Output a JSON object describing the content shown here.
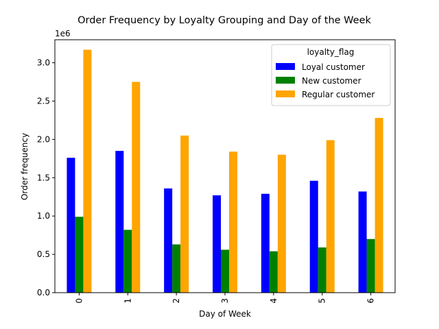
{
  "chart_data": {
    "type": "bar",
    "title": "Order Frequency by Loyalty Grouping and Day of the Week",
    "xlabel": "Day of Week",
    "ylabel": "Order frequency",
    "y_offset_label": "1e6",
    "y_scale": 1000000,
    "categories": [
      "0",
      "1",
      "2",
      "3",
      "4",
      "5",
      "6"
    ],
    "ylim": [
      0,
      3300000
    ],
    "yticks": [
      0,
      500000,
      1000000,
      1500000,
      2000000,
      2500000,
      3000000
    ],
    "ytick_labels": [
      "0.0",
      "0.5",
      "1.0",
      "1.5",
      "2.0",
      "2.5",
      "3.0"
    ],
    "grid": false,
    "legend": {
      "title": "loyalty_flag",
      "placement": "top-right"
    },
    "series": [
      {
        "name": "Loyal customer",
        "color": "#0000ff",
        "values": [
          1760000,
          1850000,
          1360000,
          1270000,
          1290000,
          1460000,
          1320000
        ]
      },
      {
        "name": "New customer",
        "color": "#008000",
        "values": [
          990000,
          820000,
          630000,
          560000,
          540000,
          590000,
          700000
        ]
      },
      {
        "name": "Regular customer",
        "color": "#ffa500",
        "values": [
          3170000,
          2750000,
          2050000,
          1840000,
          1800000,
          1990000,
          2280000
        ]
      }
    ]
  }
}
